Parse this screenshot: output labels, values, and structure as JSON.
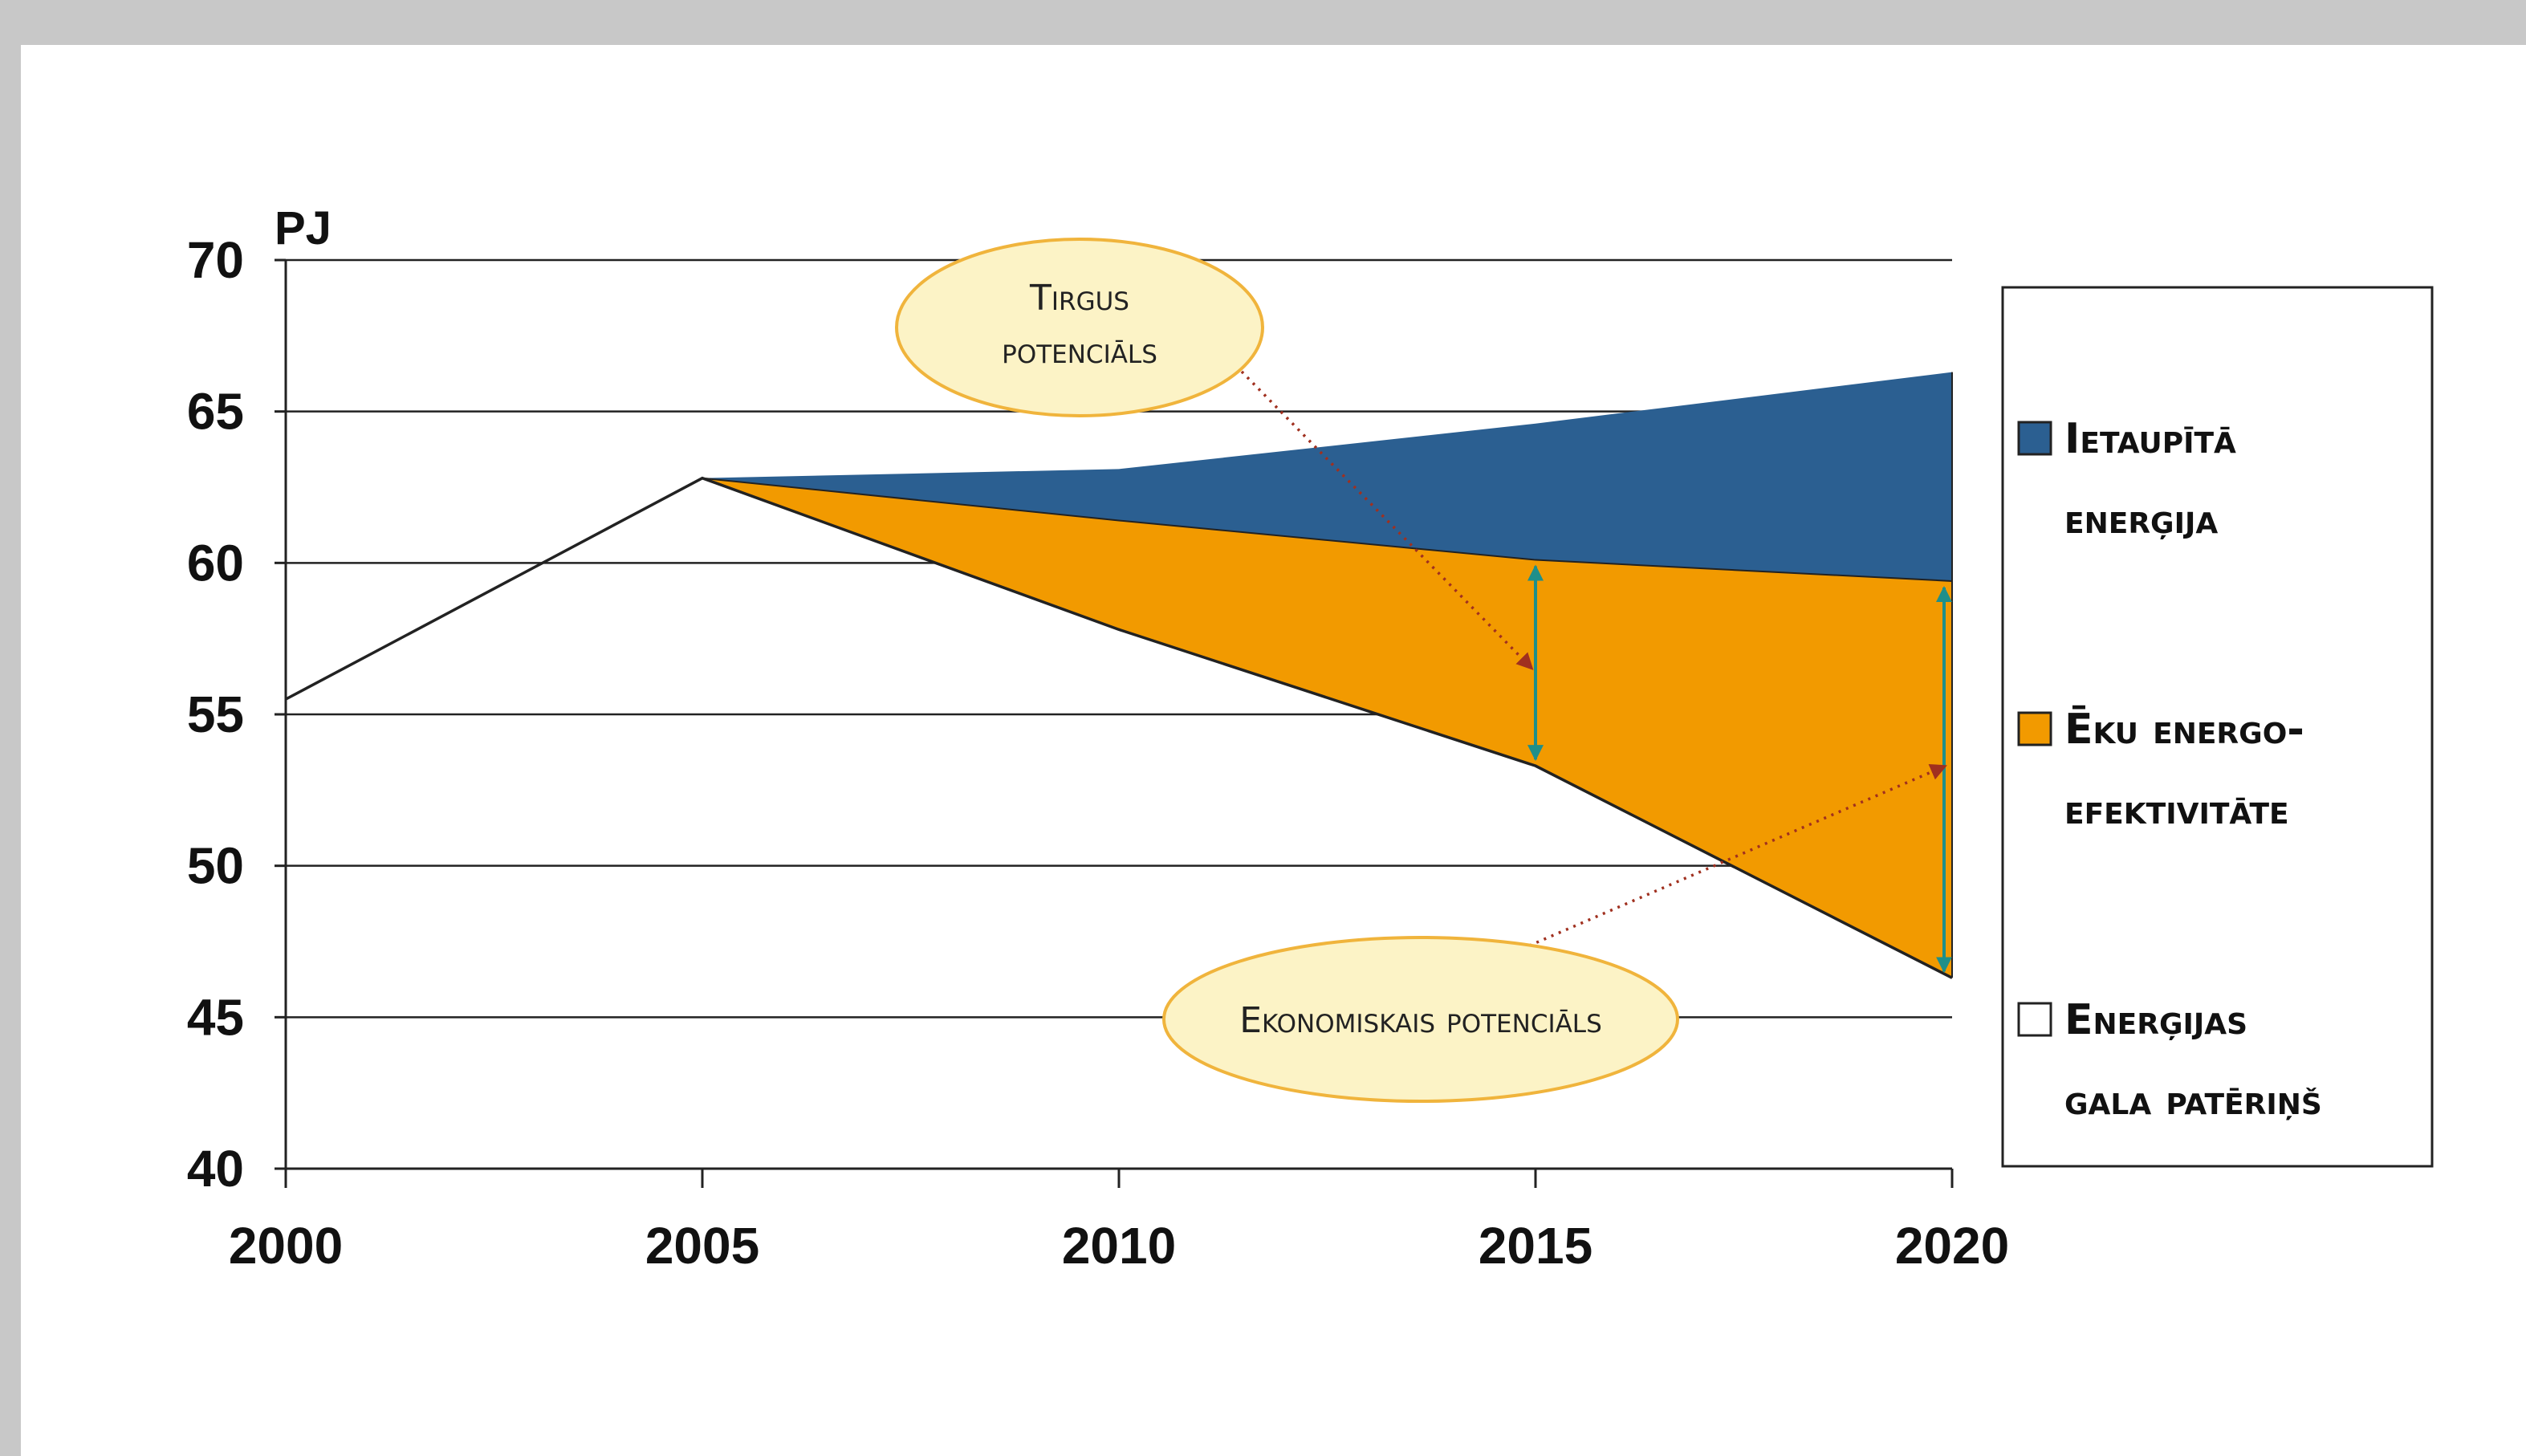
{
  "chart_data": {
    "type": "area",
    "ylabel": "PJ",
    "xlim": [
      2000,
      2020
    ],
    "ylim": [
      40,
      70
    ],
    "x_ticks": [
      "2000",
      "2005",
      "2010",
      "2015",
      "2020"
    ],
    "y_ticks": [
      "70",
      "65",
      "60",
      "55",
      "50",
      "45",
      "40"
    ],
    "grid": "horizontal",
    "legend_position": "right",
    "series": [
      {
        "name": "Ietaupītā enerģija",
        "color": "#2b5f91",
        "x": [
          2005,
          2010,
          2015,
          2020
        ],
        "upper": [
          62.8,
          63.1,
          64.6,
          66.3
        ],
        "lower": [
          62.8,
          61.4,
          60.1,
          59.4
        ]
      },
      {
        "name": "Ēku energo-efektivitāte",
        "color": "#f29a00",
        "x": [
          2005,
          2010,
          2015,
          2020
        ],
        "upper": [
          62.8,
          61.4,
          60.1,
          59.4
        ],
        "lower": [
          62.8,
          57.8,
          53.3,
          46.3
        ]
      },
      {
        "name": "Enerģijas gala patēriņš",
        "color": "#ffffff",
        "x": [
          2000,
          2005,
          2010,
          2015,
          2020
        ],
        "values": [
          55.5,
          62.8,
          57.8,
          53.3,
          46.3
        ]
      }
    ],
    "annotations": [
      {
        "text_lines": [
          "Tirgus",
          "potenciāls"
        ],
        "points_to": [
          2015,
          56.5
        ],
        "span": [
          2015,
          53.3,
          60.1
        ]
      },
      {
        "text_lines": [
          "Ekonomiskais potenciāls"
        ],
        "points_to": [
          2020,
          53.3
        ],
        "span": [
          2020,
          46.3,
          59.4
        ]
      }
    ],
    "legend_labels": [
      [
        "Ietaupītā",
        "enerģija"
      ],
      [
        "Ēku energo-",
        "efektivitāte"
      ],
      [
        "Enerģijas",
        "gala patēriņš"
      ]
    ]
  }
}
